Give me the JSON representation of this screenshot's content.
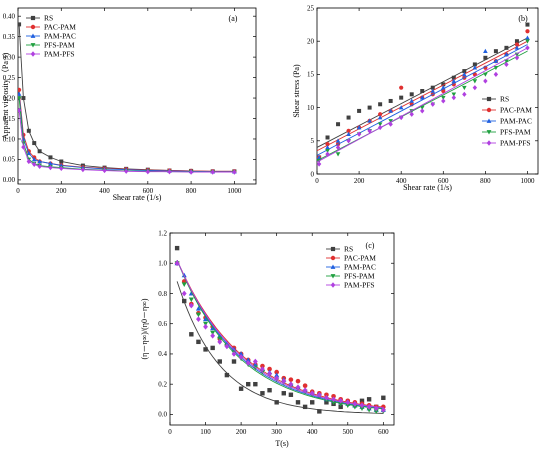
{
  "chart_data": [
    {
      "panel": "(a)",
      "type": "scatter",
      "xlabel": "Shear rate (1/s)",
      "ylabel": "Apparent viscosity （Pa·s)",
      "xlim": [
        0,
        1100
      ],
      "ylim": [
        -0.01,
        0.42
      ],
      "xticks": [
        0,
        200,
        400,
        600,
        800,
        1000
      ],
      "yticks": [
        0.0,
        0.05,
        0.1,
        0.15,
        0.2,
        0.25,
        0.3,
        0.35,
        0.4
      ],
      "legend_position": "top-left",
      "grid": false,
      "series": [
        {
          "name": "RS",
          "color": "#404040",
          "marker": "square",
          "x": [
            5,
            25,
            50,
            75,
            100,
            150,
            200,
            300,
            400,
            500,
            600,
            700,
            800,
            900,
            1000
          ],
          "y": [
            0.38,
            0.2,
            0.12,
            0.09,
            0.07,
            0.055,
            0.045,
            0.035,
            0.03,
            0.027,
            0.025,
            0.023,
            0.022,
            0.021,
            0.021
          ]
        },
        {
          "name": "PAC-PAM",
          "color": "#e03030",
          "marker": "circle",
          "x": [
            5,
            25,
            50,
            75,
            100,
            150,
            200,
            300,
            400,
            500,
            600,
            700,
            800,
            900,
            1000
          ],
          "y": [
            0.22,
            0.11,
            0.07,
            0.055,
            0.045,
            0.04,
            0.036,
            0.031,
            0.028,
            0.026,
            0.024,
            0.023,
            0.022,
            0.021,
            0.021
          ]
        },
        {
          "name": "PAM-PAC",
          "color": "#2060e0",
          "marker": "triangle-up",
          "x": [
            5,
            25,
            50,
            75,
            100,
            150,
            200,
            300,
            400,
            500,
            600,
            700,
            800,
            900,
            1000
          ],
          "y": [
            0.21,
            0.1,
            0.065,
            0.05,
            0.045,
            0.04,
            0.035,
            0.03,
            0.027,
            0.025,
            0.023,
            0.022,
            0.021,
            0.02,
            0.02
          ]
        },
        {
          "name": "PFS-PAM",
          "color": "#20a040",
          "marker": "triangle-down",
          "x": [
            5,
            25,
            50,
            75,
            100,
            150,
            200,
            300,
            400,
            500,
            600,
            700,
            800,
            900,
            1000
          ],
          "y": [
            0.2,
            0.09,
            0.05,
            0.04,
            0.035,
            0.032,
            0.03,
            0.026,
            0.024,
            0.022,
            0.021,
            0.02,
            0.02,
            0.019,
            0.019
          ]
        },
        {
          "name": "PAM-PFS",
          "color": "#b040e0",
          "marker": "diamond",
          "x": [
            5,
            25,
            50,
            75,
            100,
            150,
            200,
            300,
            400,
            500,
            600,
            700,
            800,
            900,
            1000
          ],
          "y": [
            0.17,
            0.08,
            0.045,
            0.038,
            0.033,
            0.03,
            0.028,
            0.025,
            0.023,
            0.021,
            0.02,
            0.02,
            0.019,
            0.019,
            0.019
          ]
        }
      ]
    },
    {
      "panel": "(b)",
      "type": "scatter",
      "xlabel": "Shear rate (1/s)",
      "ylabel": "Shear stress (Pa)",
      "xlim": [
        0,
        1050
      ],
      "ylim": [
        0,
        25
      ],
      "xticks": [
        0,
        200,
        400,
        600,
        800,
        1000
      ],
      "yticks": [
        0,
        5,
        10,
        15,
        20,
        25
      ],
      "legend_position": "bottom-right",
      "grid": false,
      "series": [
        {
          "name": "RS",
          "color": "#404040",
          "marker": "square",
          "x": [
            10,
            50,
            100,
            150,
            200,
            250,
            300,
            350,
            400,
            450,
            500,
            550,
            600,
            650,
            700,
            750,
            800,
            850,
            900,
            950,
            1000
          ],
          "y": [
            2.5,
            5.5,
            7.5,
            8.5,
            9.5,
            10.0,
            10.5,
            11.0,
            11.5,
            12.0,
            12.5,
            13.0,
            13.5,
            14.5,
            15.5,
            16.5,
            17.5,
            18.5,
            19.0,
            20.0,
            22.5
          ],
          "fit": [
            [
              0,
              4.0
            ],
            [
              1000,
              20.5
            ]
          ]
        },
        {
          "name": "PAC-PAM",
          "color": "#e03030",
          "marker": "circle",
          "x": [
            10,
            50,
            100,
            150,
            200,
            250,
            300,
            350,
            400,
            450,
            500,
            550,
            600,
            650,
            700,
            750,
            800,
            850,
            900,
            950,
            1000
          ],
          "y": [
            2.5,
            4.5,
            4.5,
            6.5,
            7.0,
            8.0,
            9.0,
            9.5,
            13.0,
            10.5,
            11.5,
            12.0,
            12.5,
            13.5,
            14.5,
            15.0,
            16.0,
            17.0,
            18.0,
            19.5,
            21.5
          ],
          "fit": [
            [
              0,
              3.5
            ],
            [
              1000,
              20.0
            ]
          ]
        },
        {
          "name": "PAM-PAC",
          "color": "#2060e0",
          "marker": "triangle-up",
          "x": [
            10,
            50,
            100,
            150,
            200,
            250,
            300,
            350,
            400,
            450,
            500,
            550,
            600,
            650,
            700,
            750,
            800,
            850,
            900,
            950,
            1000
          ],
          "y": [
            2.5,
            4.0,
            5.0,
            6.0,
            7.0,
            8.0,
            8.5,
            9.5,
            10.0,
            11.0,
            11.5,
            12.5,
            13.0,
            14.0,
            15.0,
            16.0,
            18.5,
            17.0,
            18.0,
            19.0,
            20.5
          ],
          "fit": [
            [
              0,
              2.8
            ],
            [
              1000,
              19.5
            ]
          ]
        },
        {
          "name": "PFS-PAM",
          "color": "#20a040",
          "marker": "triangle-down",
          "x": [
            10,
            50,
            100,
            150,
            200,
            250,
            300,
            350,
            400,
            450,
            500,
            550,
            600,
            650,
            700,
            750,
            800,
            850,
            900,
            950,
            1000
          ],
          "y": [
            2.0,
            3.5,
            3.0,
            5.0,
            6.0,
            6.5,
            7.5,
            8.0,
            8.5,
            9.5,
            10.0,
            10.5,
            11.5,
            12.0,
            13.0,
            14.0,
            15.0,
            16.0,
            17.0,
            18.0,
            20.0
          ],
          "fit": [
            [
              0,
              2.0
            ],
            [
              1000,
              18.5
            ]
          ]
        },
        {
          "name": "PAM-PFS",
          "color": "#b040e0",
          "marker": "diamond",
          "x": [
            10,
            50,
            100,
            150,
            200,
            250,
            300,
            350,
            400,
            450,
            500,
            550,
            600,
            650,
            700,
            750,
            800,
            850,
            900,
            950,
            1000
          ],
          "y": [
            1.5,
            3.0,
            4.0,
            5.0,
            6.0,
            6.5,
            7.0,
            7.5,
            8.5,
            9.0,
            9.5,
            10.5,
            11.0,
            11.5,
            12.0,
            13.0,
            14.0,
            15.0,
            16.5,
            17.5,
            19.0
          ],
          "fit": [
            [
              0,
              1.8
            ],
            [
              1000,
              19.0
            ]
          ]
        }
      ]
    },
    {
      "panel": "(c)",
      "type": "scatter",
      "xlabel": "T(s)",
      "ylabel": "(η－η∞)/(η0－η∞)",
      "xlim": [
        0,
        630
      ],
      "ylim": [
        -0.07,
        1.2
      ],
      "xticks": [
        0,
        100,
        200,
        300,
        400,
        500,
        600
      ],
      "yticks": [
        0.0,
        0.2,
        0.4,
        0.6,
        0.8,
        1.0,
        1.2
      ],
      "legend_position": "top-right",
      "grid": false,
      "series": [
        {
          "name": "RS",
          "color": "#404040",
          "marker": "square",
          "x": [
            20,
            40,
            60,
            80,
            100,
            120,
            140,
            160,
            180,
            200,
            220,
            240,
            260,
            280,
            300,
            320,
            340,
            360,
            380,
            400,
            420,
            440,
            460,
            480,
            500,
            520,
            540,
            560,
            580,
            600
          ],
          "y": [
            1.1,
            0.75,
            0.53,
            0.48,
            0.43,
            0.44,
            0.35,
            0.26,
            0.35,
            0.17,
            0.2,
            0.2,
            0.14,
            0.16,
            0.08,
            0.14,
            0.13,
            0.08,
            0.05,
            0.08,
            0.02,
            0.08,
            0.07,
            0.05,
            0.08,
            0.06,
            0.09,
            0.1,
            0.05,
            0.11
          ],
          "fit_tau": 120,
          "fit_y0": 0.88
        },
        {
          "name": "PAC-PAM",
          "color": "#e03030",
          "marker": "circle",
          "x": [
            20,
            40,
            60,
            80,
            100,
            120,
            140,
            160,
            180,
            200,
            220,
            240,
            260,
            280,
            300,
            320,
            340,
            360,
            380,
            400,
            420,
            440,
            460,
            480,
            500,
            520,
            540,
            560,
            580,
            600
          ],
          "y": [
            1.0,
            0.88,
            0.73,
            0.67,
            0.64,
            0.58,
            0.5,
            0.46,
            0.44,
            0.4,
            0.36,
            0.33,
            0.32,
            0.3,
            0.28,
            0.24,
            0.23,
            0.22,
            0.19,
            0.15,
            0.14,
            0.13,
            0.12,
            0.1,
            0.09,
            0.08,
            0.07,
            0.06,
            0.05,
            0.05
          ],
          "fit_tau": 190,
          "fit_y0": 1.02
        },
        {
          "name": "PAM-PAC",
          "color": "#2060e0",
          "marker": "triangle-up",
          "x": [
            20,
            40,
            60,
            80,
            100,
            120,
            140,
            160,
            180,
            200,
            220,
            240,
            260,
            280,
            300,
            320,
            340,
            360,
            380,
            400,
            420,
            440,
            460,
            480,
            500,
            520,
            540,
            560,
            580,
            600
          ],
          "y": [
            1.0,
            0.92,
            0.8,
            0.7,
            0.63,
            0.57,
            0.52,
            0.47,
            0.43,
            0.4,
            0.36,
            0.33,
            0.3,
            0.28,
            0.26,
            0.23,
            0.2,
            0.18,
            0.16,
            0.14,
            0.12,
            0.1,
            0.09,
            0.08,
            0.07,
            0.06,
            0.05,
            0.04,
            0.03,
            0.03
          ],
          "fit_tau": 180,
          "fit_y0": 1.02
        },
        {
          "name": "PFS-PAM",
          "color": "#20a040",
          "marker": "triangle-down",
          "x": [
            20,
            40,
            60,
            80,
            100,
            120,
            140,
            160,
            180,
            200,
            220,
            240,
            260,
            280,
            300,
            320,
            340,
            360,
            380,
            400,
            420,
            440,
            460,
            480,
            500,
            520,
            540,
            560,
            580,
            600
          ],
          "y": [
            1.0,
            0.86,
            0.76,
            0.66,
            0.6,
            0.54,
            0.5,
            0.45,
            0.41,
            0.37,
            0.33,
            0.31,
            0.28,
            0.26,
            0.23,
            0.21,
            0.19,
            0.17,
            0.15,
            0.13,
            0.12,
            0.1,
            0.08,
            0.07,
            0.06,
            0.05,
            0.04,
            0.03,
            0.02,
            0.02
          ],
          "fit_tau": 175,
          "fit_y0": 1.02
        },
        {
          "name": "PAM-PFS",
          "color": "#b040e0",
          "marker": "diamond",
          "x": [
            20,
            40,
            60,
            80,
            100,
            120,
            140,
            160,
            180,
            200,
            220,
            240,
            260,
            280,
            300,
            320,
            340,
            360,
            380,
            400,
            420,
            440,
            460,
            480,
            500,
            520,
            540,
            560,
            580,
            600
          ],
          "y": [
            1.0,
            0.8,
            0.72,
            0.63,
            0.58,
            0.52,
            0.48,
            0.45,
            0.4,
            0.38,
            0.34,
            0.35,
            0.3,
            0.27,
            0.24,
            0.22,
            0.2,
            0.18,
            0.16,
            0.14,
            0.13,
            0.11,
            0.1,
            0.09,
            0.08,
            0.07,
            0.06,
            0.05,
            0.04,
            0.03
          ],
          "fit_tau": 185,
          "fit_y0": 1.02
        }
      ]
    }
  ]
}
